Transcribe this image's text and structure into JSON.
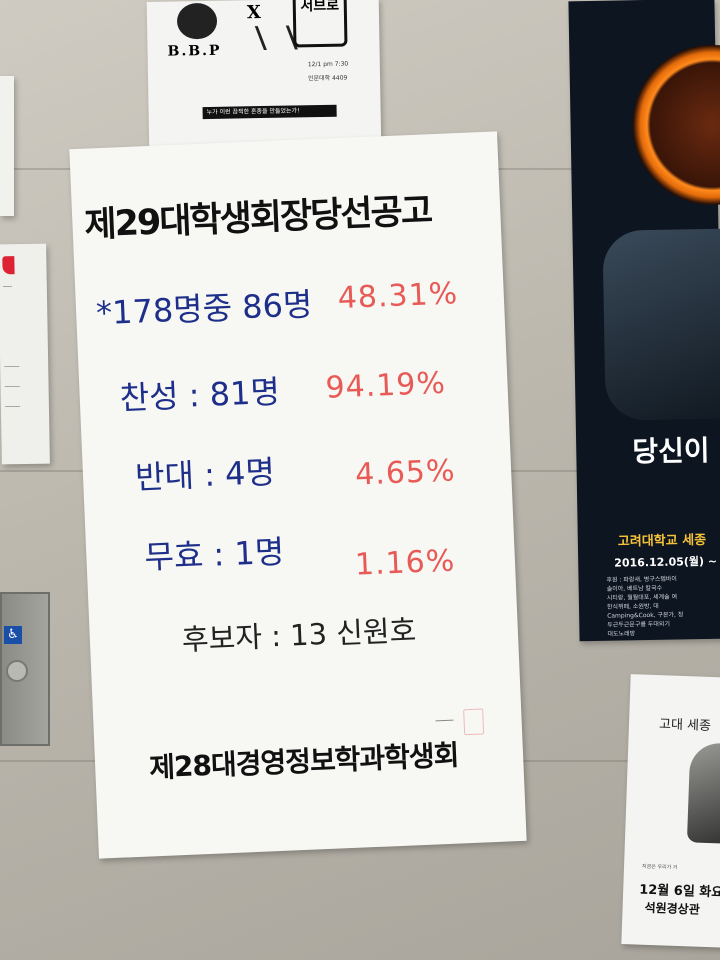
{
  "top_flyer": {
    "band_left": "B.B.P",
    "versus": "X",
    "brush_text": "서브로",
    "date_line": "12/1 pm 7:30",
    "venue_line": "인문대학 4409",
    "strip_text": "누가 이런 끔찍한 혼종을 만들었는가!"
  },
  "announcement": {
    "title": "제29대학생회장당선공고",
    "total": {
      "label": "*178명중 86명",
      "pct": "48.31%"
    },
    "yes": {
      "label": "찬성 : 81명",
      "pct": "94.19%"
    },
    "no": {
      "label": "반대 : 4명",
      "pct": "4.65%"
    },
    "invalid": {
      "label": "무효 : 1명",
      "pct": "1.16%"
    },
    "candidate": "후보자 : 13 신원호",
    "organization": "제28대경영정보학과학생회"
  },
  "right_poster": {
    "headline": "당신이",
    "org": "고려대학교 세종",
    "date": "2016.12.05(월) ~",
    "fine_lines": [
      "후원 : 파랑새, 병구스텝바이",
      "솔이아, 베트남 칼국수",
      "시티랑, 월월대포, 세계술 여",
      "한식뷔페, 소원방, 대",
      "Camping&Cook, 구본가, 정",
      "두근두근문구를 두대외기",
      "대도노래방"
    ]
  },
  "bottom_right_poster": {
    "title": "고대 세종",
    "fine": "지금은 우리가 거",
    "date": "12월 6일 화요",
    "place": "석원경상관"
  },
  "colors": {
    "marker_blue": "#1e2f8a",
    "marker_red": "#e85a55",
    "marker_black": "#111111",
    "wheelchair_sign": "#1a4fa8",
    "poster_yellow": "#f5c23a"
  }
}
